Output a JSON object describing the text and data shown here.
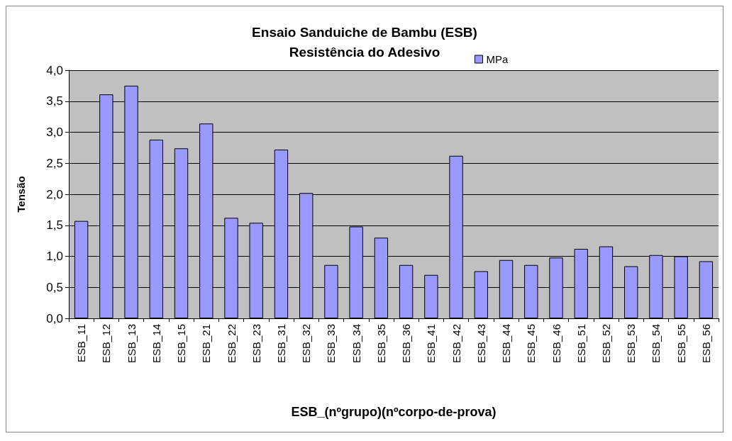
{
  "chart_data": {
    "type": "bar",
    "title": "Ensaio Sanduiche de Bambu (ESB)",
    "subtitle": "Resistência do Adesivo",
    "xlabel": "ESB_(nºgrupo)(nºcorpo-de-prova)",
    "ylabel": "Tensão",
    "categories": [
      "ESB_11",
      "ESB_12",
      "ESB_13",
      "ESB_14",
      "ESB_15",
      "ESB_21",
      "ESB_22",
      "ESB_23",
      "ESB_31",
      "ESB_32",
      "ESB_33",
      "ESB_34",
      "ESB_35",
      "ESB_36",
      "ESB_41",
      "ESB_42",
      "ESB_43",
      "ESB_44",
      "ESB_45",
      "ESB_46",
      "ESB_51",
      "ESB_52",
      "ESB_53",
      "ESB_54",
      "ESB_55",
      "ESB_56"
    ],
    "series": [
      {
        "name": "MPa",
        "color": "#9999ff",
        "values": [
          1.57,
          3.61,
          3.75,
          2.88,
          2.74,
          3.14,
          1.62,
          1.54,
          2.72,
          2.02,
          0.86,
          1.48,
          1.3,
          0.86,
          0.7,
          2.62,
          0.76,
          0.94,
          0.86,
          0.98,
          1.12,
          1.16,
          0.84,
          1.02,
          1.0,
          0.92
        ]
      }
    ],
    "ylim": [
      0,
      4
    ],
    "yticks": [
      {
        "value": 0,
        "label": "0,0"
      },
      {
        "value": 0.5,
        "label": "0,5"
      },
      {
        "value": 1,
        "label": "1,0"
      },
      {
        "value": 1.5,
        "label": "1,5"
      },
      {
        "value": 2,
        "label": "2,0"
      },
      {
        "value": 2.5,
        "label": "2,5"
      },
      {
        "value": 3,
        "label": "3,0"
      },
      {
        "value": 3.5,
        "label": "3,5"
      },
      {
        "value": 4,
        "label": "4,0"
      }
    ],
    "grid": "y",
    "legend": "top right"
  }
}
